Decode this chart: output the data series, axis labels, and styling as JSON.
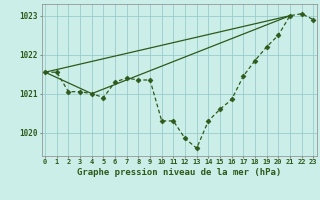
{
  "title": "Graphe pression niveau de la mer (hPa)",
  "background_color": "#cceee8",
  "grid_color": "#99cccc",
  "line_color": "#2d5a1b",
  "hours": [
    0,
    1,
    2,
    3,
    4,
    5,
    6,
    7,
    8,
    9,
    10,
    11,
    12,
    13,
    14,
    15,
    16,
    17,
    18,
    19,
    20,
    21,
    22,
    23
  ],
  "series_main": [
    1021.55,
    1021.55,
    1021.05,
    1021.05,
    1021.0,
    1020.9,
    1021.3,
    1021.4,
    1021.35,
    1021.35,
    1020.3,
    1020.3,
    1019.85,
    1019.6,
    1020.3,
    1020.6,
    1020.85,
    1021.45,
    1021.85,
    1022.2,
    1022.5,
    1023.0,
    1023.05,
    1022.9
  ],
  "line1_x": [
    0,
    21
  ],
  "line1_y": [
    1021.55,
    1023.0
  ],
  "line2_x": [
    0,
    4,
    21
  ],
  "line2_y": [
    1021.55,
    1021.0,
    1023.0
  ],
  "line3_x": [
    4,
    21
  ],
  "line3_y": [
    1021.0,
    1023.0
  ],
  "ylim": [
    1019.4,
    1023.3
  ],
  "yticks": [
    1020,
    1021,
    1022,
    1023
  ],
  "xlim": [
    -0.3,
    23.3
  ]
}
